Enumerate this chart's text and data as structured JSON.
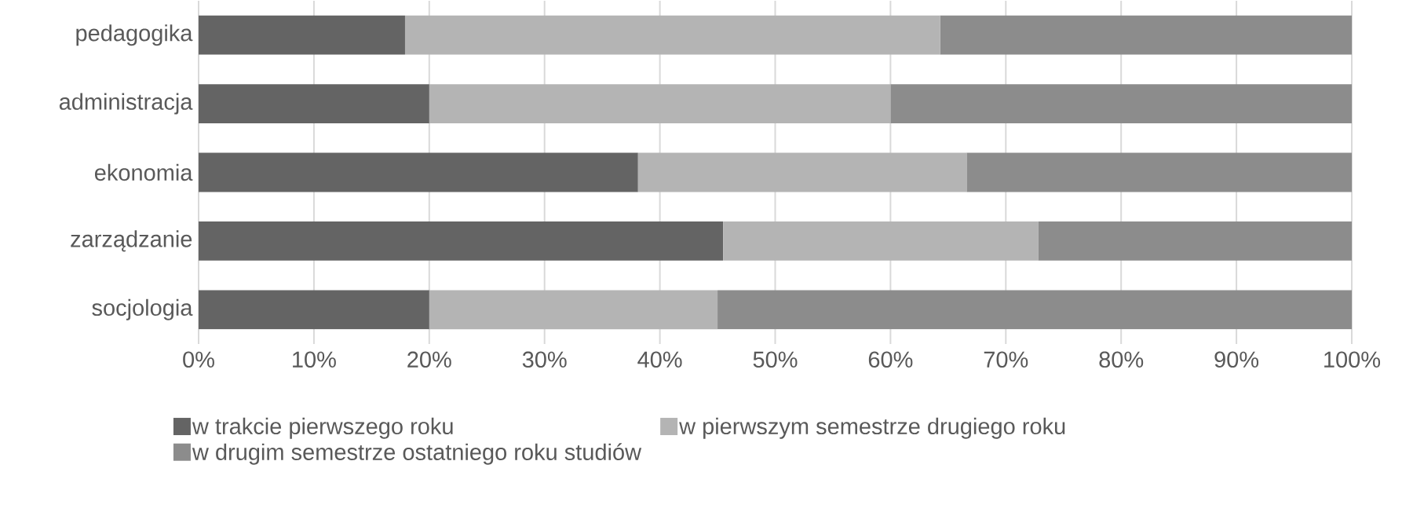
{
  "chart_data": {
    "type": "bar",
    "orientation": "horizontal",
    "stacked": true,
    "categories": [
      "pedagogika",
      "administracja",
      "ekonomia",
      "zarządzanie",
      "socjologia"
    ],
    "series": [
      {
        "name": "w trakcie pierwszego roku",
        "color": "#646464",
        "values": [
          17.9,
          20,
          38.1,
          45.5,
          20
        ]
      },
      {
        "name": "w pierwszym semestrze drugiego roku",
        "color": "#b4b4b4",
        "values": [
          46.4,
          40,
          28.5,
          27.3,
          25
        ]
      },
      {
        "name": "w drugim semestrze ostatniego roku studiów",
        "color": "#8c8c8c",
        "values": [
          35.7,
          40,
          33.4,
          27.2,
          55
        ]
      }
    ],
    "xlim": [
      0,
      100
    ],
    "xticks": [
      {
        "value": 0,
        "label": "0%"
      },
      {
        "value": 10,
        "label": "10%"
      },
      {
        "value": 20,
        "label": "20%"
      },
      {
        "value": 30,
        "label": "30%"
      },
      {
        "value": 40,
        "label": "40%"
      },
      {
        "value": 50,
        "label": "50%"
      },
      {
        "value": 60,
        "label": "60%"
      },
      {
        "value": 70,
        "label": "70%"
      },
      {
        "value": 80,
        "label": "80%"
      },
      {
        "value": 90,
        "label": "90%"
      },
      {
        "value": 100,
        "label": "100%"
      }
    ],
    "grid": "x",
    "legend": "bottom"
  }
}
